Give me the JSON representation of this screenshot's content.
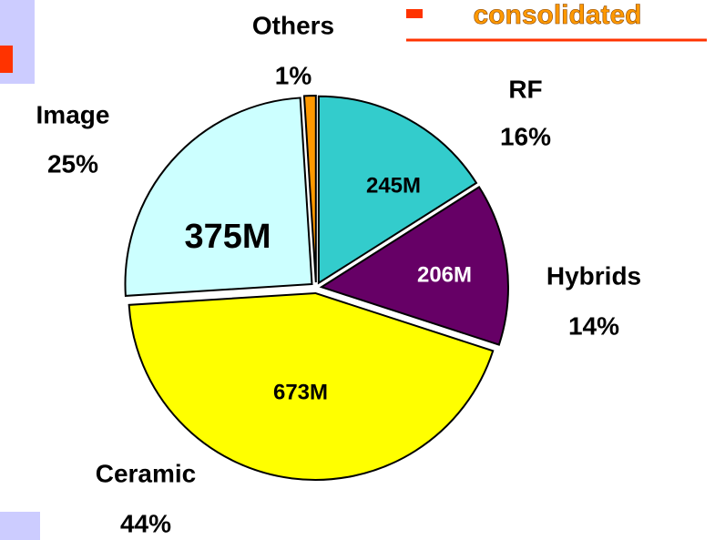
{
  "header_note": "consolidated",
  "chart_data": {
    "type": "pie",
    "categories": [
      "RF",
      "Hybrids",
      "Ceramic",
      "Image",
      "Others"
    ],
    "values": [
      16,
      14,
      44,
      25,
      1
    ],
    "value_labels": [
      "16%",
      "14%",
      "44%",
      "25%",
      "1%"
    ],
    "amounts": [
      245,
      206,
      673,
      375,
      null
    ],
    "amount_labels": [
      "245M",
      "206M",
      "673M",
      "375M",
      null
    ],
    "colors": [
      "#33CCCC",
      "#660066",
      "#FFFF00",
      "#CCFFFF",
      "#FF9900"
    ]
  }
}
